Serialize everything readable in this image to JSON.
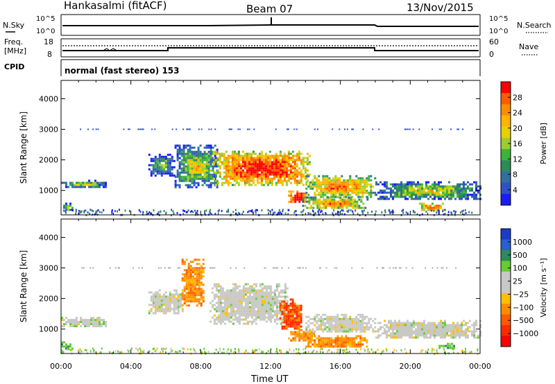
{
  "header": {
    "title": "Hankasalmi (fitACF)",
    "beam": "Beam 07",
    "date": "13/Nov/2015"
  },
  "labels": {
    "nsky": "N.Sky",
    "nsearch": "N.Search",
    "freq": "Freq.",
    "mhz": "[MHz]",
    "cpid": "CPID",
    "nave": "Nave",
    "mode": "normal (fast stereo) 153",
    "ylabel": "Slant Range [km]",
    "xlabel": "Time UT"
  },
  "small_axes": {
    "noise_ticks": [
      "10^5",
      "10^0"
    ],
    "freq_ticks": [
      "18",
      "8"
    ],
    "nave_ticks": [
      "60",
      "0"
    ]
  },
  "chart_data": [
    {
      "type": "heatmap",
      "name": "power-panel",
      "ylabel": "Slant Range [km]",
      "xlim": [
        0,
        24
      ],
      "ylim": [
        200,
        4600
      ],
      "xticks": [
        "00:00",
        "04:00",
        "08:00",
        "12:00",
        "16:00",
        "20:00",
        "00:00"
      ],
      "yticks": [
        1000,
        2000,
        3000,
        4000
      ],
      "colorbar": {
        "label": "Power [dB]",
        "ticks": [
          "28",
          "24",
          "20",
          "16",
          "12",
          "8",
          "4"
        ],
        "colors": [
          "#ff0000",
          "#ff5a00",
          "#ff8c00",
          "#ffb400",
          "#e6d200",
          "#9ccc30",
          "#3cb43c",
          "#2e8b57",
          "#2f6f9f",
          "#3050c8",
          "#1a1aff"
        ]
      },
      "regions": [
        {
          "t": [
            0.0,
            2.6
          ],
          "r": [
            1100,
            1350
          ],
          "level": 0.3
        },
        {
          "t": [
            0.0,
            0.7
          ],
          "r": [
            350,
            600
          ],
          "level": 0.4
        },
        {
          "t": [
            5.0,
            6.5
          ],
          "r": [
            1500,
            2200
          ],
          "level": 0.2
        },
        {
          "t": [
            6.5,
            9.0
          ],
          "r": [
            1100,
            2500
          ],
          "level": 0.35
        },
        {
          "t": [
            8.7,
            14.3
          ],
          "r": [
            1200,
            2300
          ],
          "level": 0.75
        },
        {
          "t": [
            13.0,
            14.0
          ],
          "r": [
            600,
            1000
          ],
          "level": 0.9
        },
        {
          "t": [
            14.0,
            18.0
          ],
          "r": [
            800,
            1500
          ],
          "level": 0.6
        },
        {
          "t": [
            13.8,
            17.5
          ],
          "r": [
            400,
            800
          ],
          "level": 0.55
        },
        {
          "t": [
            18.0,
            24.0
          ],
          "r": [
            700,
            1300
          ],
          "level": 0.35
        },
        {
          "t": [
            20.5,
            22.0
          ],
          "r": [
            350,
            600
          ],
          "level": 0.7
        }
      ]
    },
    {
      "type": "heatmap",
      "name": "velocity-panel",
      "ylabel": "Slant Range [km]",
      "xlabel": "Time UT",
      "xlim": [
        0,
        24
      ],
      "ylim": [
        200,
        4600
      ],
      "xticks": [
        "00:00",
        "04:00",
        "08:00",
        "12:00",
        "16:00",
        "20:00",
        "00:00"
      ],
      "yticks": [
        1000,
        2000,
        3000,
        4000
      ],
      "colorbar": {
        "label": "Velocity [m s⁻¹]",
        "ticks": [
          "1000",
          "500",
          "100",
          "25",
          "−25",
          "−100",
          "−500",
          "−1000"
        ],
        "colors": [
          "#1a3cc8",
          "#2a5fd0",
          "#2e8b57",
          "#66cc33",
          "#c8c8c8",
          "#c8c8c8",
          "#ffc000",
          "#ff8c00",
          "#ff5a00",
          "#ff2a00",
          "#ff0000"
        ]
      },
      "regions": [
        {
          "t": [
            0.0,
            2.6
          ],
          "r": [
            1100,
            1400
          ],
          "kind": "grey"
        },
        {
          "t": [
            0.0,
            0.7
          ],
          "r": [
            350,
            600
          ],
          "kind": "green"
        },
        {
          "t": [
            5.0,
            7.0
          ],
          "r": [
            1500,
            2300
          ],
          "kind": "grey"
        },
        {
          "t": [
            6.9,
            8.2
          ],
          "r": [
            1800,
            3300
          ],
          "kind": "orange"
        },
        {
          "t": [
            8.5,
            13.0
          ],
          "r": [
            1200,
            2500
          ],
          "kind": "grey"
        },
        {
          "t": [
            12.5,
            13.8
          ],
          "r": [
            1000,
            2000
          ],
          "kind": "red"
        },
        {
          "t": [
            13.0,
            14.5
          ],
          "r": [
            600,
            1000
          ],
          "kind": "orange"
        },
        {
          "t": [
            14.0,
            18.0
          ],
          "r": [
            900,
            1500
          ],
          "kind": "grey"
        },
        {
          "t": [
            14.0,
            17.5
          ],
          "r": [
            400,
            800
          ],
          "kind": "orange"
        },
        {
          "t": [
            18.0,
            24.0
          ],
          "r": [
            700,
            1300
          ],
          "kind": "grey"
        },
        {
          "t": [
            21.5,
            22.5
          ],
          "r": [
            350,
            550
          ],
          "kind": "green"
        }
      ]
    }
  ]
}
